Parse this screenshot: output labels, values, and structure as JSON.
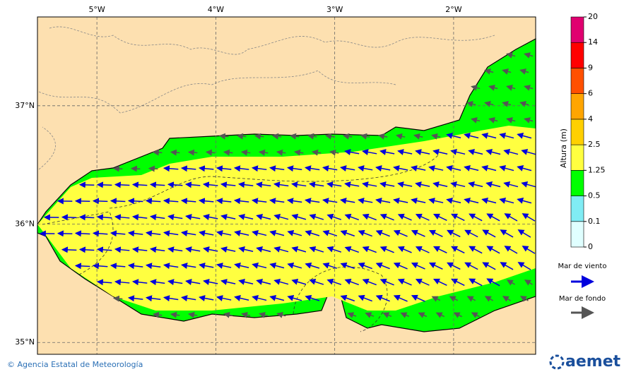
{
  "map": {
    "xlim": [
      -5.5,
      -1.31
    ],
    "ylim": [
      34.9,
      37.75
    ],
    "xticks": [
      {
        "value": -5,
        "label": "5°W"
      },
      {
        "value": -4,
        "label": "4°W"
      },
      {
        "value": -3,
        "label": "3°W"
      },
      {
        "value": -2,
        "label": "2°W"
      }
    ],
    "yticks": [
      {
        "value": 37,
        "label": "37°N"
      },
      {
        "value": 36,
        "label": "36°N"
      },
      {
        "value": 35,
        "label": "35°N"
      }
    ]
  },
  "colorbar": {
    "label": "Altura (m)",
    "levels": [
      0,
      0.1,
      0.5,
      1.25,
      2.5,
      4,
      6,
      9,
      14,
      20
    ],
    "colors": [
      "#e0ffff",
      "#80ecf4",
      "#00ff00",
      "#ffff40",
      "#ffd000",
      "#ffa500",
      "#ff5000",
      "#ff0000",
      "#e00070",
      "#a000b0"
    ]
  },
  "legend": {
    "wind_sea": "Mar de viento",
    "swell": "Mar de fondo"
  },
  "footer": {
    "credit": "© Agencia Estatal de Meteorología",
    "logo": "aemet"
  }
}
